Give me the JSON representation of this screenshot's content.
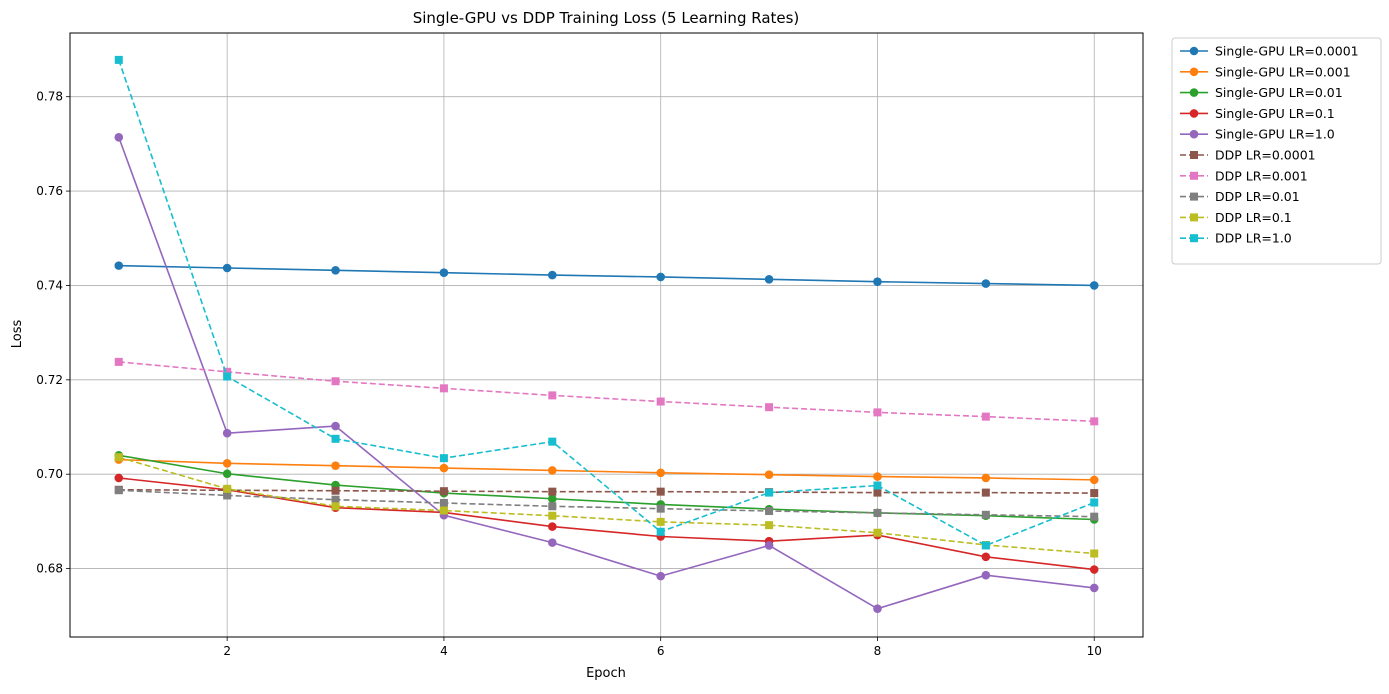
{
  "chart_data": {
    "type": "line",
    "title": "Single-GPU vs DDP Training Loss (5 Learning Rates)",
    "xlabel": "Epoch",
    "ylabel": "Loss",
    "xlim": [
      0.55,
      10.45
    ],
    "ylim": [
      0.6655,
      0.7935
    ],
    "xticks": [
      2,
      4,
      6,
      8,
      10
    ],
    "yticks": [
      0.68,
      0.7,
      0.72,
      0.74,
      0.76,
      0.78
    ],
    "ytick_labels": [
      "0.68",
      "0.70",
      "0.72",
      "0.74",
      "0.76",
      "0.78"
    ],
    "grid": true,
    "legend_position": "outside upper right",
    "x": [
      1,
      2,
      3,
      4,
      5,
      6,
      7,
      8,
      9,
      10
    ],
    "series": [
      {
        "name": "Single-GPU LR=0.0001",
        "color": "#1f77b4",
        "linestyle": "solid",
        "marker": "circle",
        "values": [
          0.7442,
          0.7437,
          0.7432,
          0.7427,
          0.7422,
          0.7418,
          0.7413,
          0.7408,
          0.7404,
          0.74
        ]
      },
      {
        "name": "Single-GPU LR=0.001",
        "color": "#ff7f0e",
        "linestyle": "solid",
        "marker": "circle",
        "values": [
          0.7031,
          0.7023,
          0.7018,
          0.7013,
          0.7008,
          0.7003,
          0.6999,
          0.6995,
          0.6992,
          0.6988
        ]
      },
      {
        "name": "Single-GPU LR=0.01",
        "color": "#2ca02c",
        "linestyle": "solid",
        "marker": "circle",
        "values": [
          0.704,
          0.7001,
          0.6977,
          0.696,
          0.6948,
          0.6936,
          0.6926,
          0.6918,
          0.6912,
          0.6904
        ]
      },
      {
        "name": "Single-GPU LR=0.1",
        "color": "#d62728",
        "linestyle": "solid",
        "marker": "circle",
        "values": [
          0.6992,
          0.6967,
          0.6929,
          0.6919,
          0.6889,
          0.6868,
          0.6858,
          0.6871,
          0.6825,
          0.6798
        ]
      },
      {
        "name": "Single-GPU LR=1.0",
        "color": "#9467bd",
        "linestyle": "solid",
        "marker": "circle",
        "values": [
          0.7714,
          0.7087,
          0.7102,
          0.6913,
          0.6855,
          0.6784,
          0.6849,
          0.6715,
          0.6786,
          0.6759
        ]
      },
      {
        "name": "DDP LR=0.0001",
        "color": "#8c564b",
        "linestyle": "dashed",
        "marker": "square",
        "values": [
          0.6967,
          0.6966,
          0.6965,
          0.6964,
          0.6963,
          0.6963,
          0.6962,
          0.6961,
          0.6961,
          0.696
        ]
      },
      {
        "name": "DDP LR=0.001",
        "color": "#e377c2",
        "linestyle": "dashed",
        "marker": "square",
        "values": [
          0.7238,
          0.7217,
          0.7197,
          0.7182,
          0.7167,
          0.7154,
          0.7142,
          0.7131,
          0.7122,
          0.7112
        ]
      },
      {
        "name": "DDP LR=0.01",
        "color": "#7f7f7f",
        "linestyle": "dashed",
        "marker": "square",
        "values": [
          0.6966,
          0.6955,
          0.6946,
          0.6939,
          0.6932,
          0.6927,
          0.6922,
          0.6918,
          0.6914,
          0.691
        ]
      },
      {
        "name": "DDP LR=0.1",
        "color": "#bcbd22",
        "linestyle": "dashed",
        "marker": "square",
        "values": [
          0.7036,
          0.6969,
          0.6932,
          0.6923,
          0.6912,
          0.6899,
          0.6892,
          0.6876,
          0.685,
          0.6832
        ]
      },
      {
        "name": "DDP LR=1.0",
        "color": "#17becf",
        "linestyle": "dashed",
        "marker": "square",
        "values": [
          0.7878,
          0.7207,
          0.7075,
          0.7034,
          0.7069,
          0.6878,
          0.6961,
          0.6976,
          0.6849,
          0.694
        ]
      }
    ]
  }
}
